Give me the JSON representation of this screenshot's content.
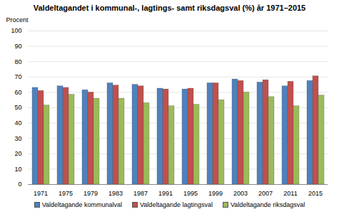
{
  "chart_data": {
    "type": "bar",
    "title": "Valdeltagandet i kommunal-, lagtings- samt riksdagsval (%) år 1971–2015",
    "y_label": "Procent",
    "categories": [
      "1971",
      "1975",
      "1979",
      "1983",
      "1987",
      "1991",
      "1995",
      "1999",
      "2003",
      "2007",
      "2011",
      "2015"
    ],
    "series": [
      {
        "name": "Valdeltagande kommunalval",
        "color": "#4f81bd",
        "values": [
          63,
          64,
          61.5,
          66,
          65,
          62.5,
          62,
          66,
          68.5,
          66.5,
          64,
          67.5
        ]
      },
      {
        "name": "Valdeltagande lagtingsval",
        "color": "#c0504d",
        "values": [
          61,
          63,
          60,
          64.5,
          64,
          62,
          62.5,
          66,
          67.5,
          68,
          67,
          70.5
        ]
      },
      {
        "name": "Valdeltagande riksdagsval",
        "color": "#9bbb59",
        "values": [
          51.5,
          58.5,
          56,
          56,
          53,
          51,
          52,
          55,
          60,
          57,
          51,
          58
        ]
      }
    ],
    "ylim": [
      0,
      100
    ],
    "yticks": [
      0,
      10,
      20,
      30,
      40,
      50,
      60,
      70,
      80,
      90,
      100
    ],
    "grid": true,
    "legend": "bottom"
  }
}
